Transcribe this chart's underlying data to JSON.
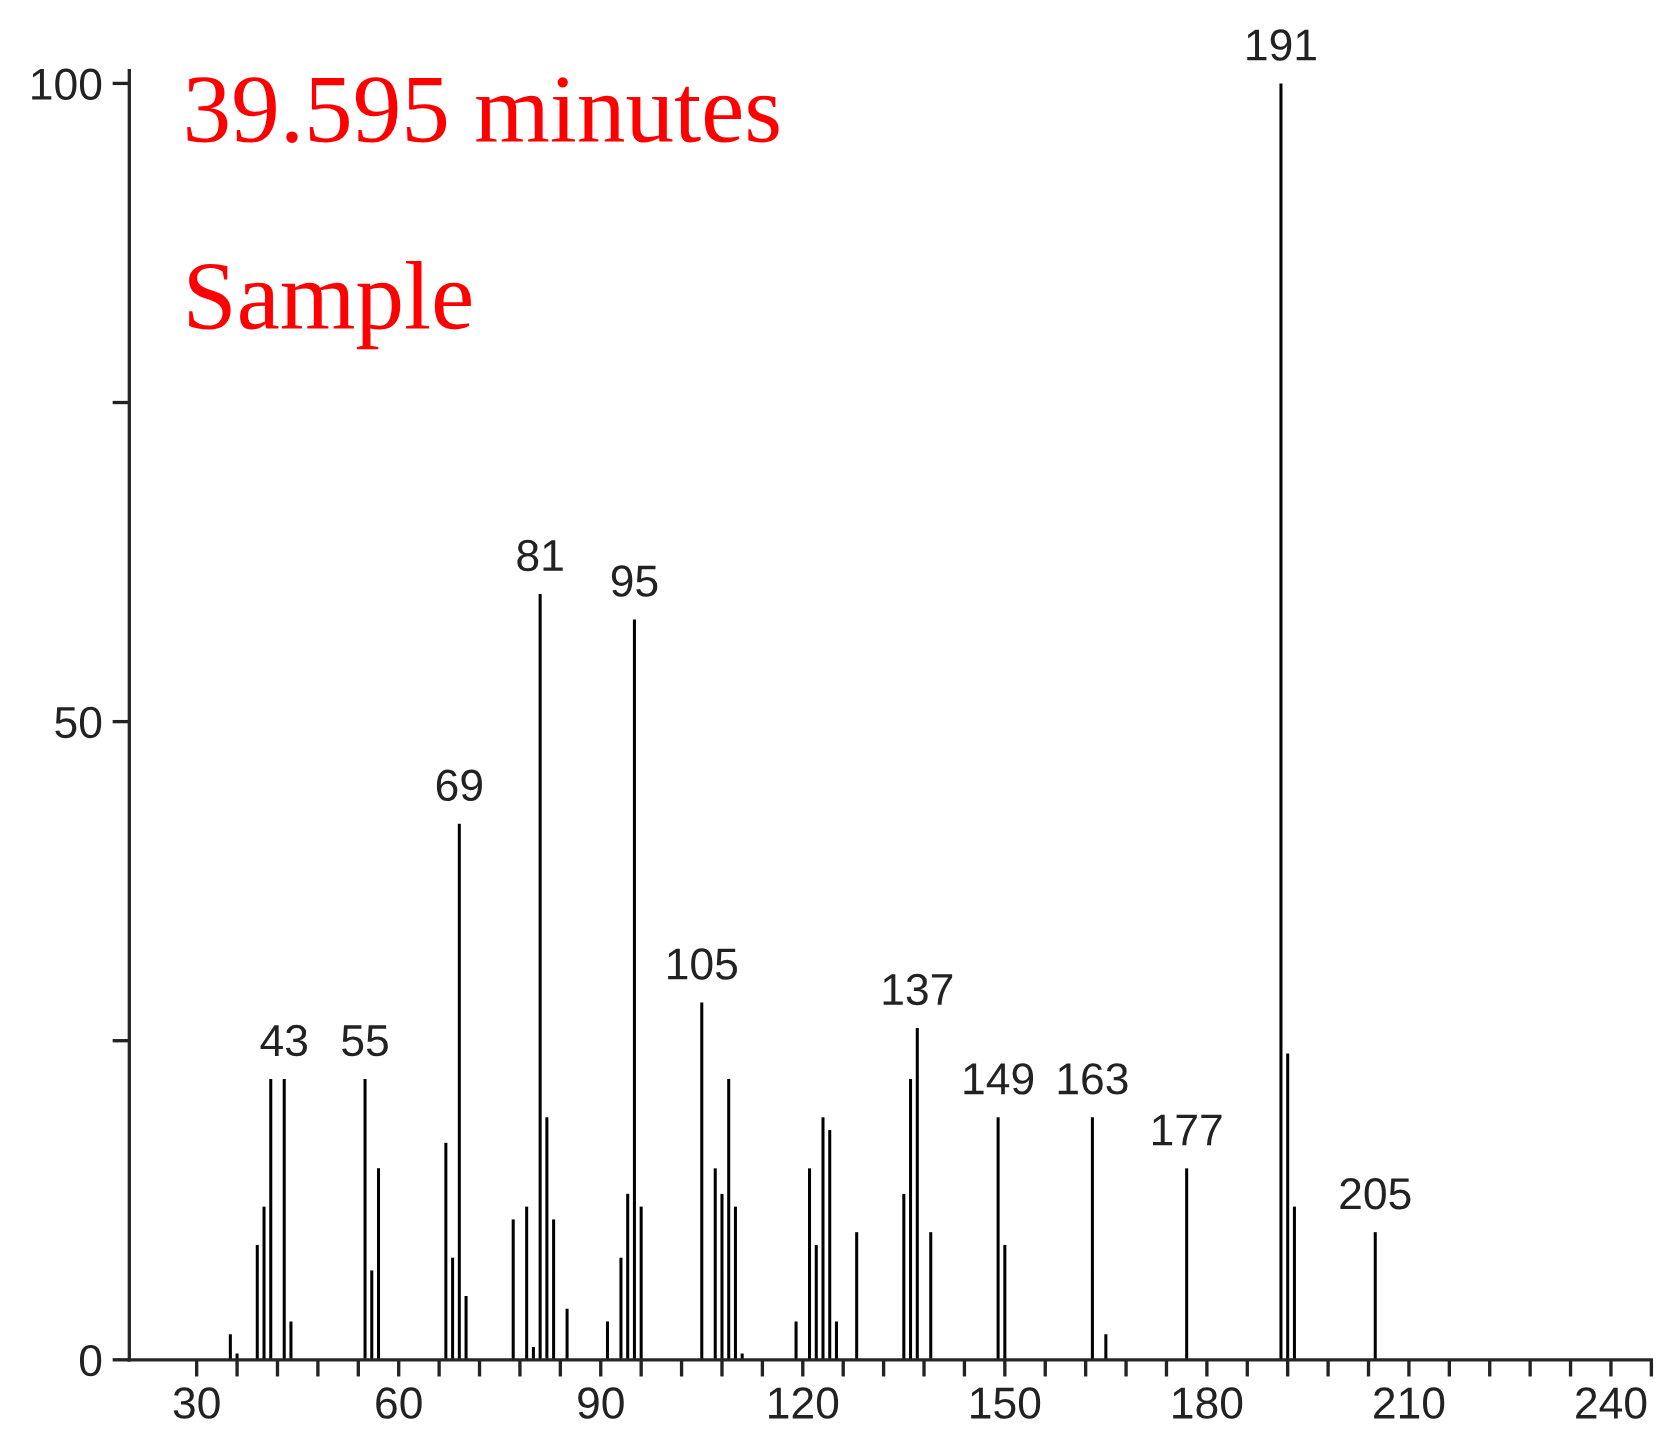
{
  "chart_data": {
    "type": "bar",
    "color": "#000000",
    "x": [
      35,
      36,
      39,
      40,
      41,
      43,
      44,
      55,
      56,
      57,
      67,
      68,
      69,
      70,
      77,
      79,
      80,
      81,
      82,
      83,
      85,
      91,
      93,
      94,
      95,
      96,
      105,
      107,
      108,
      109,
      110,
      111,
      119,
      121,
      122,
      123,
      124,
      125,
      128,
      135,
      136,
      137,
      139,
      149,
      150,
      163,
      165,
      177,
      191,
      192,
      193,
      205
    ],
    "values": [
      2,
      0.5,
      9,
      12,
      22,
      22,
      3,
      22,
      7,
      15,
      17,
      8,
      42,
      5,
      11,
      12,
      1,
      60,
      19,
      11,
      4,
      3,
      8,
      13,
      58,
      12,
      28,
      15,
      13,
      22,
      12,
      0.5,
      3,
      15,
      9,
      19,
      18,
      3,
      10,
      13,
      22,
      26,
      10,
      19,
      9,
      19,
      2,
      15,
      100,
      24,
      12,
      10
    ],
    "xlim": [
      20,
      246
    ],
    "xticks": [
      30,
      {
        "value": 36,
        "label": null
      },
      {
        "value": 42,
        "label": null
      },
      {
        "value": 48,
        "label": null
      },
      {
        "value": 54,
        "label": null
      },
      60,
      {
        "value": 66,
        "label": null
      },
      {
        "value": 72,
        "label": null
      },
      {
        "value": 78,
        "label": null
      },
      {
        "value": 84,
        "label": null
      },
      90,
      {
        "value": 96,
        "label": null
      },
      {
        "value": 102,
        "label": null
      },
      {
        "value": 108,
        "label": null
      },
      {
        "value": 114,
        "label": null
      },
      120,
      {
        "value": 126,
        "label": null
      },
      {
        "value": 132,
        "label": null
      },
      {
        "value": 138,
        "label": null
      },
      {
        "value": 144,
        "label": null
      },
      150,
      {
        "value": 156,
        "label": null
      },
      {
        "value": 162,
        "label": null
      },
      {
        "value": 168,
        "label": null
      },
      {
        "value": 174,
        "label": null
      },
      180,
      {
        "value": 186,
        "label": null
      },
      {
        "value": 192,
        "label": null
      },
      {
        "value": 198,
        "label": null
      },
      {
        "value": 204,
        "label": null
      },
      210,
      {
        "value": 216,
        "label": null
      },
      {
        "value": 222,
        "label": null
      },
      {
        "value": 228,
        "label": null
      },
      {
        "value": 234,
        "label": null
      },
      240,
      {
        "value": 246,
        "label": null
      }
    ],
    "ylim": [
      0,
      101
    ],
    "yticks": [
      0,
      {
        "value": 25,
        "label": null
      },
      50,
      {
        "value": 75,
        "label": null
      },
      100
    ],
    "annotations": [
      "39.595 minutes",
      "Sample",
      {
        "text": "43",
        "x": 43,
        "y": 22
      },
      {
        "text": "55",
        "x": 55,
        "y": 22
      },
      {
        "text": "69",
        "x": 69,
        "y": 42
      },
      {
        "text": "81",
        "x": 81,
        "y": 60
      },
      {
        "text": "95",
        "x": 95,
        "y": 58
      },
      {
        "text": "105",
        "x": 105,
        "y": 28
      },
      {
        "text": "137",
        "x": 137,
        "y": 26
      },
      {
        "text": "149",
        "x": 149,
        "y": 19
      },
      {
        "text": "163",
        "x": 163,
        "y": 19
      },
      {
        "text": "177",
        "x": 177,
        "y": 15
      },
      {
        "text": "191",
        "x": 191,
        "y": 100
      },
      {
        "text": "205",
        "x": 205,
        "y": 10
      }
    ]
  }
}
